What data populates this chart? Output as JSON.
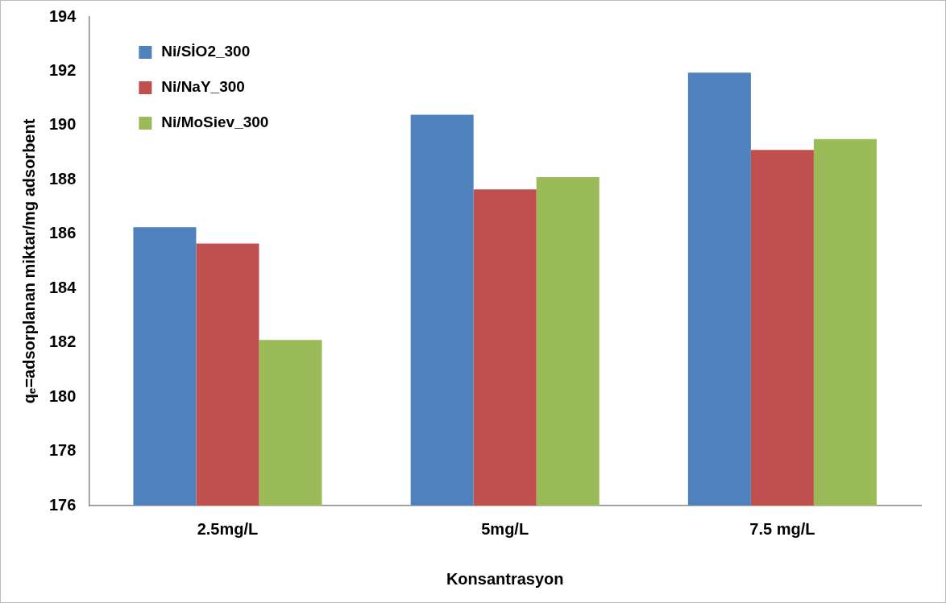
{
  "chart_data": {
    "type": "bar",
    "xlabel": "Konsantrasyon",
    "ylabel": "qₑ=adsorplanan miktar/mg adsorbent",
    "categories": [
      "2.5mg/L",
      "5mg/L",
      "7.5 mg/L"
    ],
    "series": [
      {
        "name": "Ni/SİO2_300",
        "color": "#4f81bd",
        "values": [
          186.25,
          190.4,
          191.95
        ]
      },
      {
        "name": "Ni/NaY_300",
        "color": "#c0504d",
        "values": [
          185.65,
          187.65,
          189.1
        ]
      },
      {
        "name": "Ni/MoSiev_300",
        "color": "#9bbb59",
        "values": [
          182.1,
          188.1,
          189.5
        ]
      }
    ],
    "ylim": [
      176,
      194
    ],
    "yticks": [
      176,
      178,
      180,
      182,
      184,
      186,
      188,
      190,
      192,
      194
    ],
    "grid": false,
    "legend": "top left"
  }
}
